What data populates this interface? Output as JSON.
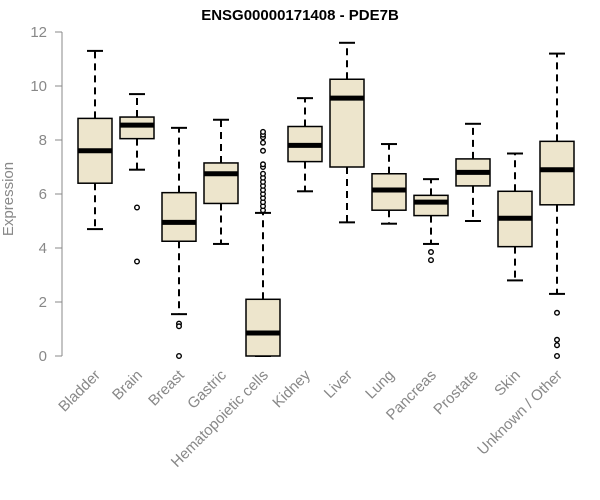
{
  "chart_data": {
    "type": "boxplot",
    "title": "ENSG00000171408 - PDE7B",
    "xlabel": "",
    "ylabel": "Expression",
    "ylim": [
      0,
      12
    ],
    "yticks": [
      0,
      2,
      4,
      6,
      8,
      10,
      12
    ],
    "ytick_labels": [
      "0",
      "2",
      "4",
      "6",
      "8",
      "10",
      "12"
    ],
    "grid": false,
    "legend": "none",
    "categories": [
      "Bladder",
      "Brain",
      "Breast",
      "Gastric",
      "Hematopoietic cells",
      "Kidney",
      "Liver",
      "Lung",
      "Pancreas",
      "Prostate",
      "Skin",
      "Unknown / Other"
    ],
    "boxes": [
      {
        "category": "Bladder",
        "whisker_low": 4.7,
        "q1": 6.4,
        "median": 7.6,
        "q3": 8.8,
        "whisker_high": 11.3,
        "outliers": []
      },
      {
        "category": "Brain",
        "whisker_low": 6.9,
        "q1": 8.05,
        "median": 8.55,
        "q3": 8.85,
        "whisker_high": 9.7,
        "outliers": [
          5.5,
          3.5
        ]
      },
      {
        "category": "Breast",
        "whisker_low": 1.55,
        "q1": 4.25,
        "median": 4.95,
        "q3": 6.05,
        "whisker_high": 8.45,
        "outliers": [
          1.2,
          1.1,
          0.0
        ]
      },
      {
        "category": "Gastric",
        "whisker_low": 4.15,
        "q1": 5.65,
        "median": 6.75,
        "q3": 7.15,
        "whisker_high": 8.75,
        "outliers": []
      },
      {
        "category": "Hematopoietic cells",
        "whisker_low": 0.0,
        "q1": 0.0,
        "median": 0.85,
        "q3": 2.1,
        "whisker_high": 5.3,
        "outliers": [
          5.4,
          5.55,
          5.7,
          5.85,
          6.0,
          6.15,
          6.3,
          6.45,
          6.6,
          6.75,
          7.0,
          7.1,
          7.6,
          7.9,
          8.1,
          8.2,
          8.3
        ]
      },
      {
        "category": "Kidney",
        "whisker_low": 6.1,
        "q1": 7.2,
        "median": 7.8,
        "q3": 8.5,
        "whisker_high": 9.55,
        "outliers": []
      },
      {
        "category": "Liver",
        "whisker_low": 4.95,
        "q1": 7.0,
        "median": 9.55,
        "q3": 10.25,
        "whisker_high": 11.6,
        "outliers": []
      },
      {
        "category": "Lung",
        "whisker_low": 4.9,
        "q1": 5.4,
        "median": 6.15,
        "q3": 6.75,
        "whisker_high": 7.85,
        "outliers": []
      },
      {
        "category": "Pancreas",
        "whisker_low": 4.15,
        "q1": 5.2,
        "median": 5.7,
        "q3": 5.95,
        "whisker_high": 6.55,
        "outliers": [
          3.85,
          3.55
        ]
      },
      {
        "category": "Prostate",
        "whisker_low": 5.0,
        "q1": 6.3,
        "median": 6.8,
        "q3": 7.3,
        "whisker_high": 8.6,
        "outliers": []
      },
      {
        "category": "Skin",
        "whisker_low": 2.8,
        "q1": 4.05,
        "median": 5.1,
        "q3": 6.1,
        "whisker_high": 7.5,
        "outliers": []
      },
      {
        "category": "Unknown / Other",
        "whisker_low": 2.3,
        "q1": 5.6,
        "median": 6.9,
        "q3": 7.95,
        "whisker_high": 11.2,
        "outliers": [
          1.6,
          0.6,
          0.4,
          0.0
        ]
      }
    ],
    "colors": {
      "box_fill": "#ede5cc",
      "box_stroke": "#000000",
      "median": "#000000",
      "axis": "#888888",
      "tick_label": "#888888",
      "title": "#000000"
    }
  }
}
